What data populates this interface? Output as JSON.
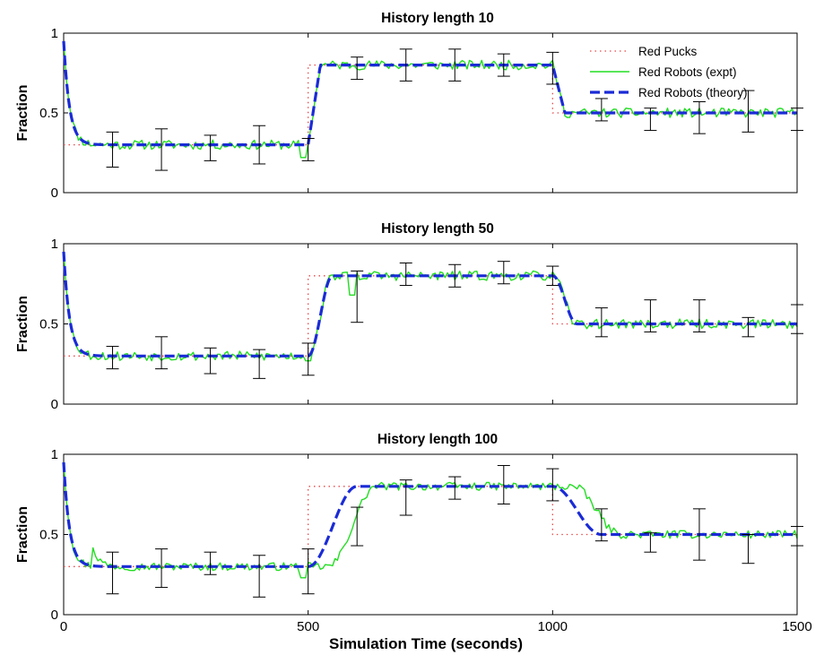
{
  "chart_data": [
    {
      "type": "line",
      "title": "History length 10",
      "ylabel": "Fraction",
      "xlabel": "",
      "xlim": [
        0,
        1500
      ],
      "ylim": [
        0,
        1
      ],
      "xticks": [
        "0",
        "500",
        "1000",
        "1500"
      ],
      "yticks": [
        "0",
        "0.5",
        "1"
      ],
      "legend": {
        "placement": "top-right",
        "entries": [
          "Red Pucks",
          "Red Robots (expt)",
          "Red Robots (theory)"
        ]
      },
      "tau": 10,
      "series": [
        {
          "name": "Red Pucks",
          "style": "dotted",
          "color": "#e8484a",
          "x": [
            0,
            500,
            500,
            1000,
            1000,
            1500
          ],
          "y": [
            0.3,
            0.3,
            0.8,
            0.8,
            0.5,
            0.5
          ]
        },
        {
          "name": "Red Robots (expt)",
          "style": "solid",
          "color": "#22dd22",
          "noise": 0.03,
          "seed": 11,
          "dips": [
            {
              "x": 490,
              "y": 0.22
            }
          ]
        },
        {
          "name": "Red Robots (theory)",
          "style": "dashed",
          "color": "#1a2bd6",
          "start": 0.95,
          "decay": 12,
          "delay": 0,
          "ramp": 25,
          "ramp_shape": "step"
        }
      ],
      "errorbars": [
        {
          "x": 100,
          "y": 0.27,
          "err": 0.11
        },
        {
          "x": 200,
          "y": 0.27,
          "err": 0.13
        },
        {
          "x": 300,
          "y": 0.28,
          "err": 0.08
        },
        {
          "x": 400,
          "y": 0.3,
          "err": 0.12
        },
        {
          "x": 500,
          "y": 0.27,
          "err": 0.07
        },
        {
          "x": 600,
          "y": 0.78,
          "err": 0.07
        },
        {
          "x": 700,
          "y": 0.8,
          "err": 0.1
        },
        {
          "x": 800,
          "y": 0.8,
          "err": 0.1
        },
        {
          "x": 900,
          "y": 0.8,
          "err": 0.07
        },
        {
          "x": 1000,
          "y": 0.78,
          "err": 0.1
        },
        {
          "x": 1100,
          "y": 0.52,
          "err": 0.07
        },
        {
          "x": 1200,
          "y": 0.46,
          "err": 0.07
        },
        {
          "x": 1300,
          "y": 0.47,
          "err": 0.1
        },
        {
          "x": 1400,
          "y": 0.51,
          "err": 0.13
        },
        {
          "x": 1500,
          "y": 0.46,
          "err": 0.07
        }
      ]
    },
    {
      "type": "line",
      "title": "History length 50",
      "ylabel": "Fraction",
      "xlabel": "",
      "xlim": [
        0,
        1500
      ],
      "ylim": [
        0,
        1
      ],
      "xticks": [
        "0",
        "500",
        "1000",
        "1500"
      ],
      "yticks": [
        "0",
        "0.5",
        "1"
      ],
      "tau": 50,
      "series": [
        {
          "name": "Red Pucks",
          "style": "dotted",
          "color": "#e8484a",
          "x": [
            0,
            500,
            500,
            1000,
            1000,
            1500
          ],
          "y": [
            0.3,
            0.3,
            0.8,
            0.8,
            0.5,
            0.5
          ]
        },
        {
          "name": "Red Robots (expt)",
          "style": "solid",
          "color": "#22dd22",
          "noise": 0.03,
          "seed": 53,
          "dips": [
            {
              "x": 500,
              "y": 0.27
            },
            {
              "x": 590,
              "y": 0.68
            }
          ]
        },
        {
          "name": "Red Robots (theory)",
          "style": "dashed",
          "color": "#1a2bd6",
          "start": 0.95,
          "decay": 12,
          "delay": 0,
          "ramp": 50,
          "ramp_shape": "smooth"
        }
      ],
      "errorbars": [
        {
          "x": 100,
          "y": 0.29,
          "err": 0.07
        },
        {
          "x": 200,
          "y": 0.32,
          "err": 0.1
        },
        {
          "x": 300,
          "y": 0.27,
          "err": 0.08
        },
        {
          "x": 400,
          "y": 0.25,
          "err": 0.09
        },
        {
          "x": 500,
          "y": 0.28,
          "err": 0.1
        },
        {
          "x": 600,
          "y": 0.67,
          "err": 0.16
        },
        {
          "x": 700,
          "y": 0.81,
          "err": 0.07
        },
        {
          "x": 800,
          "y": 0.8,
          "err": 0.07
        },
        {
          "x": 900,
          "y": 0.82,
          "err": 0.07
        },
        {
          "x": 1000,
          "y": 0.8,
          "err": 0.06
        },
        {
          "x": 1100,
          "y": 0.51,
          "err": 0.09
        },
        {
          "x": 1200,
          "y": 0.55,
          "err": 0.1
        },
        {
          "x": 1300,
          "y": 0.55,
          "err": 0.1
        },
        {
          "x": 1400,
          "y": 0.48,
          "err": 0.06
        },
        {
          "x": 1500,
          "y": 0.53,
          "err": 0.09
        }
      ]
    },
    {
      "type": "line",
      "title": "History length 100",
      "ylabel": "Fraction",
      "xlabel": "Simulation Time (seconds)",
      "xlim": [
        0,
        1500
      ],
      "ylim": [
        0,
        1
      ],
      "xticks": [
        "0",
        "500",
        "1000",
        "1500"
      ],
      "yticks": [
        "0",
        "0.5",
        "1"
      ],
      "tau": 100,
      "series": [
        {
          "name": "Red Pucks",
          "style": "dotted",
          "color": "#e8484a",
          "x": [
            0,
            500,
            500,
            1000,
            1000,
            1500
          ],
          "y": [
            0.3,
            0.3,
            0.8,
            0.8,
            0.5,
            0.5
          ]
        },
        {
          "name": "Red Robots (expt)",
          "style": "solid",
          "color": "#22dd22",
          "noise": 0.025,
          "seed": 97,
          "lag": 40,
          "dips": [
            {
              "x": 490,
              "y": 0.23
            }
          ]
        },
        {
          "name": "Red Robots (theory)",
          "style": "dashed",
          "color": "#1a2bd6",
          "start": 0.95,
          "decay": 12,
          "delay": 0,
          "ramp": 100,
          "ramp_shape": "smooth"
        }
      ],
      "errorbars": [
        {
          "x": 100,
          "y": 0.26,
          "err": 0.13
        },
        {
          "x": 200,
          "y": 0.29,
          "err": 0.12
        },
        {
          "x": 300,
          "y": 0.32,
          "err": 0.07
        },
        {
          "x": 400,
          "y": 0.24,
          "err": 0.13
        },
        {
          "x": 500,
          "y": 0.27,
          "err": 0.14
        },
        {
          "x": 600,
          "y": 0.55,
          "err": 0.12
        },
        {
          "x": 700,
          "y": 0.73,
          "err": 0.11
        },
        {
          "x": 800,
          "y": 0.79,
          "err": 0.07
        },
        {
          "x": 900,
          "y": 0.81,
          "err": 0.12
        },
        {
          "x": 1000,
          "y": 0.81,
          "err": 0.1
        },
        {
          "x": 1100,
          "y": 0.56,
          "err": 0.1
        },
        {
          "x": 1200,
          "y": 0.45,
          "err": 0.06
        },
        {
          "x": 1300,
          "y": 0.5,
          "err": 0.16
        },
        {
          "x": 1400,
          "y": 0.41,
          "err": 0.09
        },
        {
          "x": 1500,
          "y": 0.49,
          "err": 0.06
        }
      ]
    }
  ]
}
